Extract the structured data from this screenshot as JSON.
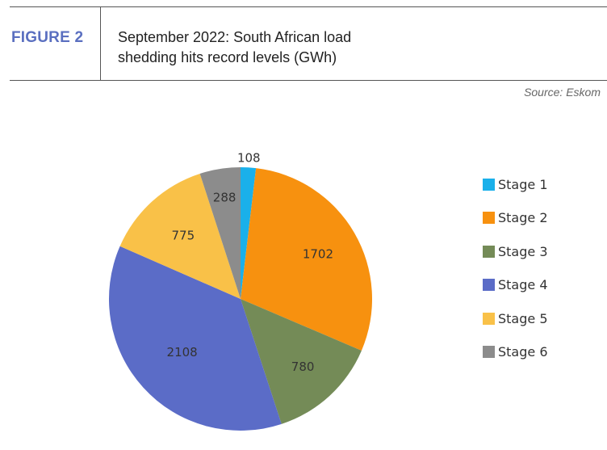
{
  "header": {
    "figure_label": "FIGURE 2",
    "title_line1": "September 2022: South African load",
    "title_line2": "shedding hits record levels (GWh)",
    "source": "Source: Eskom"
  },
  "colors": {
    "figure_label": "#5a6fc0",
    "rule": "#555555"
  },
  "chart_data": {
    "type": "pie",
    "title": "September 2022: South African load shedding hits record levels (GWh)",
    "start_angle_deg": 0,
    "direction": "clockwise",
    "legend_position": "right",
    "slices": [
      {
        "name": "Stage 1",
        "value": 108,
        "label": "108",
        "color": "#1ab0ea"
      },
      {
        "name": "Stage 2",
        "value": 1702,
        "label": "1702",
        "color": "#f7910f"
      },
      {
        "name": "Stage 3",
        "value": 780,
        "label": "780",
        "color": "#748b57"
      },
      {
        "name": "Stage 4",
        "value": 2108,
        "label": "2108",
        "color": "#5b6cc7"
      },
      {
        "name": "Stage 5",
        "value": 775,
        "label": "775",
        "color": "#f9c148"
      },
      {
        "name": "Stage 6",
        "value": 288,
        "label": "288",
        "color": "#8c8c8c"
      }
    ]
  }
}
